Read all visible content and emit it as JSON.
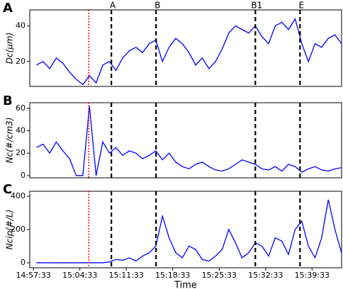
{
  "chart_data": [
    {
      "type": "line",
      "panel_label": "A",
      "ylabel": "Dc(μm)",
      "color": "#0000ff",
      "x": [
        "14:58:00",
        "14:59:00",
        "15:00:00",
        "15:01:00",
        "15:02:00",
        "15:03:00",
        "15:04:00",
        "15:05:00",
        "15:06:00",
        "15:07:00",
        "15:08:00",
        "15:09:00",
        "15:10:00",
        "15:11:00",
        "15:12:00",
        "15:13:00",
        "15:14:00",
        "15:15:00",
        "15:16:00",
        "15:17:00",
        "15:18:00",
        "15:19:00",
        "15:20:00",
        "15:21:00",
        "15:22:00",
        "15:23:00",
        "15:24:00",
        "15:25:00",
        "15:26:00",
        "15:27:00",
        "15:28:00",
        "15:29:00",
        "15:30:00",
        "15:31:00",
        "15:32:00",
        "15:33:00",
        "15:34:00",
        "15:35:00",
        "15:36:00",
        "15:37:00",
        "15:38:00",
        "15:39:00",
        "15:40:00",
        "15:41:00",
        "15:42:00",
        "15:43:00",
        "15:44:00"
      ],
      "values": [
        18,
        20,
        16,
        22,
        19,
        14,
        10,
        7,
        12,
        8,
        18,
        20,
        15,
        22,
        26,
        28,
        25,
        30,
        32,
        20,
        28,
        33,
        30,
        25,
        18,
        22,
        16,
        20,
        27,
        36,
        40,
        38,
        36,
        40,
        34,
        30,
        40,
        42,
        38,
        44,
        30,
        20,
        30,
        28,
        33,
        35,
        30
      ],
      "xlim": [
        "14:57:00",
        "15:44:00"
      ],
      "ylim": [
        6,
        49
      ],
      "yticks": [
        20,
        40
      ],
      "red_line": "15:05:53",
      "dashed_lines": [
        "15:09:18",
        "15:16:02",
        "15:31:00",
        "15:37:44"
      ],
      "dashed_labels": [
        "A",
        "B",
        "B1",
        "E"
      ]
    },
    {
      "type": "line",
      "panel_label": "B",
      "ylabel": "Nc(#/cm3)",
      "color": "#0000ff",
      "x": [
        "14:58:00",
        "14:59:00",
        "15:00:00",
        "15:01:00",
        "15:02:00",
        "15:03:00",
        "15:04:00",
        "15:05:00",
        "15:06:00",
        "15:07:00",
        "15:08:00",
        "15:09:00",
        "15:10:00",
        "15:11:00",
        "15:12:00",
        "15:13:00",
        "15:14:00",
        "15:15:00",
        "15:16:00",
        "15:17:00",
        "15:18:00",
        "15:19:00",
        "15:20:00",
        "15:21:00",
        "15:22:00",
        "15:23:00",
        "15:24:00",
        "15:25:00",
        "15:26:00",
        "15:27:00",
        "15:28:00",
        "15:29:00",
        "15:30:00",
        "15:31:00",
        "15:32:00",
        "15:33:00",
        "15:34:00",
        "15:35:00",
        "15:36:00",
        "15:37:00",
        "15:38:00",
        "15:39:00",
        "15:40:00",
        "15:41:00",
        "15:42:00",
        "15:43:00",
        "15:44:00"
      ],
      "values": [
        25,
        28,
        20,
        30,
        22,
        15,
        0,
        0,
        62,
        0,
        30,
        20,
        25,
        18,
        22,
        20,
        15,
        18,
        22,
        14,
        20,
        12,
        8,
        6,
        10,
        12,
        8,
        5,
        4,
        6,
        10,
        14,
        12,
        10,
        6,
        5,
        8,
        4,
        10,
        8,
        3,
        6,
        8,
        5,
        4,
        6,
        7
      ],
      "xlim": [
        "14:57:00",
        "15:44:00"
      ],
      "ylim": [
        -2,
        65
      ],
      "yticks": [
        0,
        20,
        40,
        60
      ],
      "red_line": "15:05:53",
      "dashed_lines": [
        "15:09:18",
        "15:16:02",
        "15:31:00",
        "15:37:44"
      ]
    },
    {
      "type": "line",
      "panel_label": "C",
      "ylabel": "Ncip(#/L)",
      "xlabel": "Time",
      "color": "#0000ff",
      "x": [
        "14:58:00",
        "14:59:00",
        "15:00:00",
        "15:01:00",
        "15:02:00",
        "15:03:00",
        "15:04:00",
        "15:05:00",
        "15:06:00",
        "15:07:00",
        "15:08:00",
        "15:09:00",
        "15:10:00",
        "15:11:00",
        "15:12:00",
        "15:13:00",
        "15:14:00",
        "15:15:00",
        "15:16:00",
        "15:17:00",
        "15:18:00",
        "15:19:00",
        "15:20:00",
        "15:21:00",
        "15:22:00",
        "15:23:00",
        "15:24:00",
        "15:25:00",
        "15:26:00",
        "15:27:00",
        "15:28:00",
        "15:29:00",
        "15:30:00",
        "15:31:00",
        "15:32:00",
        "15:33:00",
        "15:34:00",
        "15:35:00",
        "15:36:00",
        "15:37:00",
        "15:38:00",
        "15:39:00",
        "15:40:00",
        "15:41:00",
        "15:42:00",
        "15:43:00",
        "15:44:00"
      ],
      "values": [
        0,
        0,
        0,
        0,
        0,
        0,
        0,
        0,
        0,
        0,
        0,
        5,
        20,
        15,
        30,
        10,
        40,
        60,
        100,
        280,
        150,
        60,
        30,
        100,
        80,
        20,
        10,
        40,
        80,
        200,
        120,
        30,
        60,
        120,
        100,
        40,
        150,
        130,
        50,
        200,
        250,
        100,
        30,
        150,
        380,
        200,
        60
      ],
      "xlim": [
        "14:57:00",
        "15:44:00"
      ],
      "ylim": [
        -30,
        430
      ],
      "yticks": [
        0,
        200,
        400
      ],
      "xticks": [
        "14:57:33",
        "15:04:33",
        "15:11:33",
        "15:18:33",
        "15:25:33",
        "15:32:33",
        "15:39:33"
      ],
      "red_line": "15:05:53",
      "dashed_lines": [
        "15:09:18",
        "15:16:02",
        "15:31:00",
        "15:37:44"
      ]
    }
  ]
}
